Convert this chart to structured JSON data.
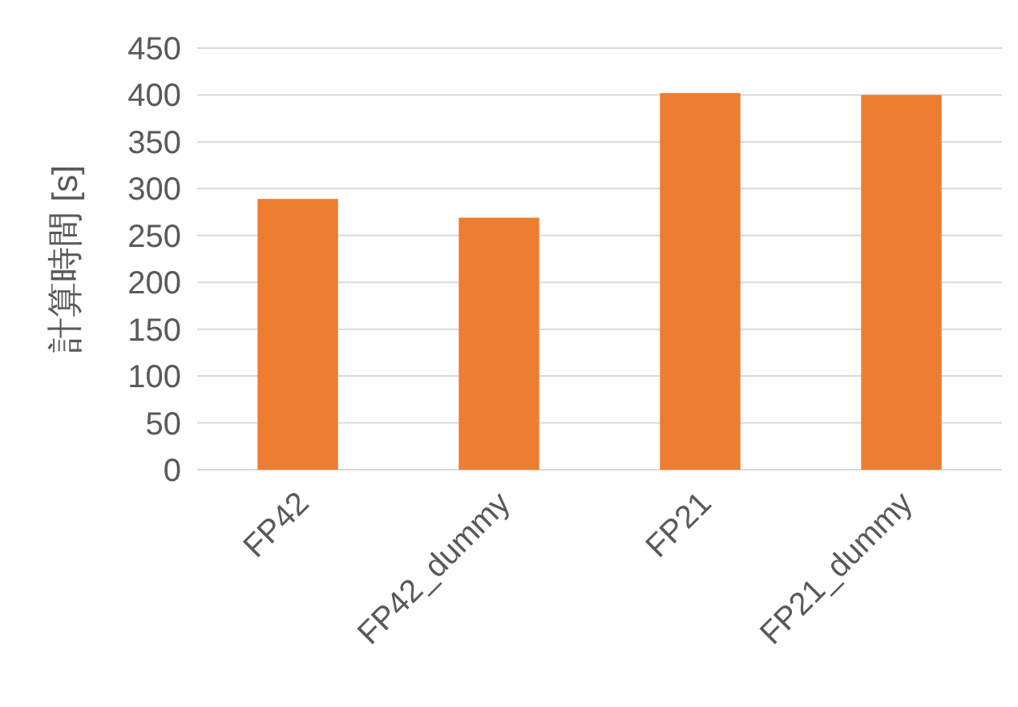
{
  "chart_data": {
    "type": "bar",
    "ylabel": "計算時間 [s]",
    "categories": [
      "FP42",
      "FP42_dummy",
      "FP21",
      "FP21_dummy"
    ],
    "values": [
      289,
      269,
      402,
      400
    ],
    "color": "#ed7d31",
    "ylim": [
      0,
      450
    ],
    "yticks": [
      0,
      50,
      100,
      150,
      200,
      250,
      300,
      350,
      400,
      450
    ],
    "grid": "y"
  }
}
